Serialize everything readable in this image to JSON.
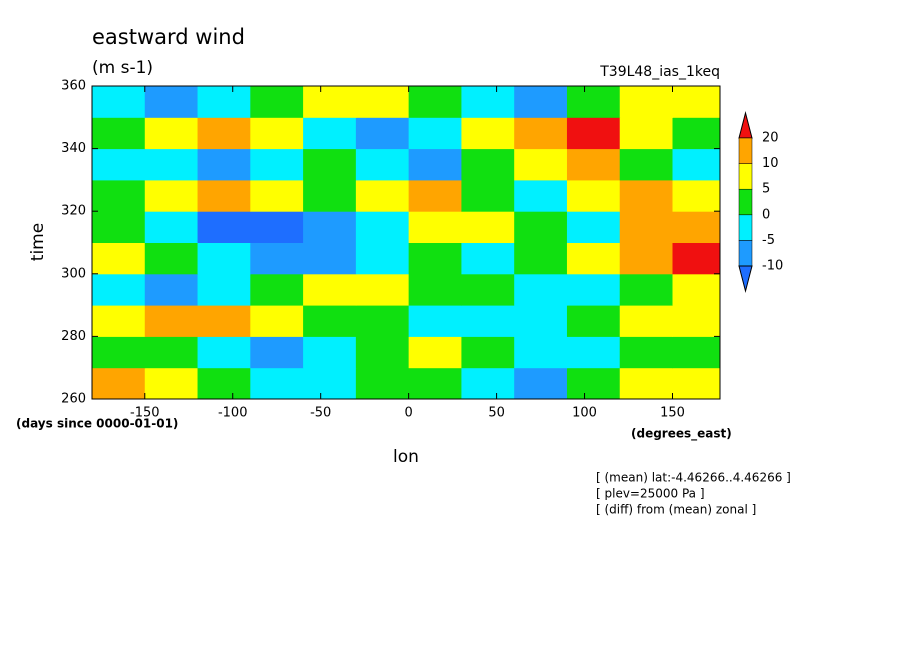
{
  "chart_data": {
    "type": "contour",
    "title": "eastward wind",
    "subtitle": "(m s-1)",
    "dataset": "T39L48_ias_1keq",
    "xlabel": "lon",
    "ylabel": "time",
    "x_unit": "(degrees_east)",
    "y_unit": "(days since 0000-01-01)",
    "notes": [
      "[ (mean) lat:-4.46266..4.46266 ]",
      "[ plev=25000 Pa ]",
      "[ (diff) from (mean) zonal ]"
    ],
    "xlim": [
      -180,
      177
    ],
    "ylim": [
      260,
      360
    ],
    "xticks": [
      -150,
      -100,
      -50,
      0,
      50,
      100,
      150
    ],
    "yticks": [
      260,
      280,
      300,
      320,
      340,
      360
    ],
    "x": [
      -165,
      -135,
      -105,
      -75,
      -45,
      -15,
      15,
      45,
      75,
      105,
      135,
      165
    ],
    "y": [
      265,
      275,
      285,
      295,
      305,
      315,
      325,
      335,
      345,
      355
    ],
    "z": [
      [
        12,
        8,
        3,
        -2,
        -5,
        0,
        3,
        -4,
        -6,
        2,
        6,
        8
      ],
      [
        4,
        2,
        -3,
        -6,
        -3,
        2,
        6,
        3,
        -2,
        -5,
        0,
        4
      ],
      [
        6,
        11,
        10,
        8,
        4,
        1,
        -2,
        -5,
        -3,
        3,
        7,
        5
      ],
      [
        -3,
        -6,
        -4,
        2,
        6,
        8,
        4,
        0,
        -4,
        -2,
        4,
        9
      ],
      [
        5,
        1,
        -5,
        -8,
        -6,
        -2,
        3,
        -3,
        2,
        8,
        14,
        21
      ],
      [
        2,
        -4,
        -11,
        -12,
        -7,
        -3,
        6,
        9,
        1,
        -2,
        12,
        16
      ],
      [
        3,
        9,
        12,
        7,
        3,
        8,
        10,
        4,
        -3,
        6,
        10,
        8
      ],
      [
        -2,
        -5,
        -7,
        -3,
        1,
        -4,
        -6,
        1,
        7,
        10,
        3,
        -4
      ],
      [
        1,
        8,
        11,
        6,
        -3,
        -7,
        -2,
        8,
        12,
        22,
        9,
        2
      ],
      [
        -5,
        -8,
        -3,
        4,
        9,
        6,
        2,
        -4,
        -6,
        3,
        8,
        5
      ]
    ],
    "levels": [
      -10,
      -5,
      0,
      5,
      10,
      20
    ],
    "colors": [
      "#1e6eff",
      "#1e9bff",
      "#00f0ff",
      "#10e010",
      "#ffff00",
      "#ffa500",
      "#f01010"
    ]
  }
}
